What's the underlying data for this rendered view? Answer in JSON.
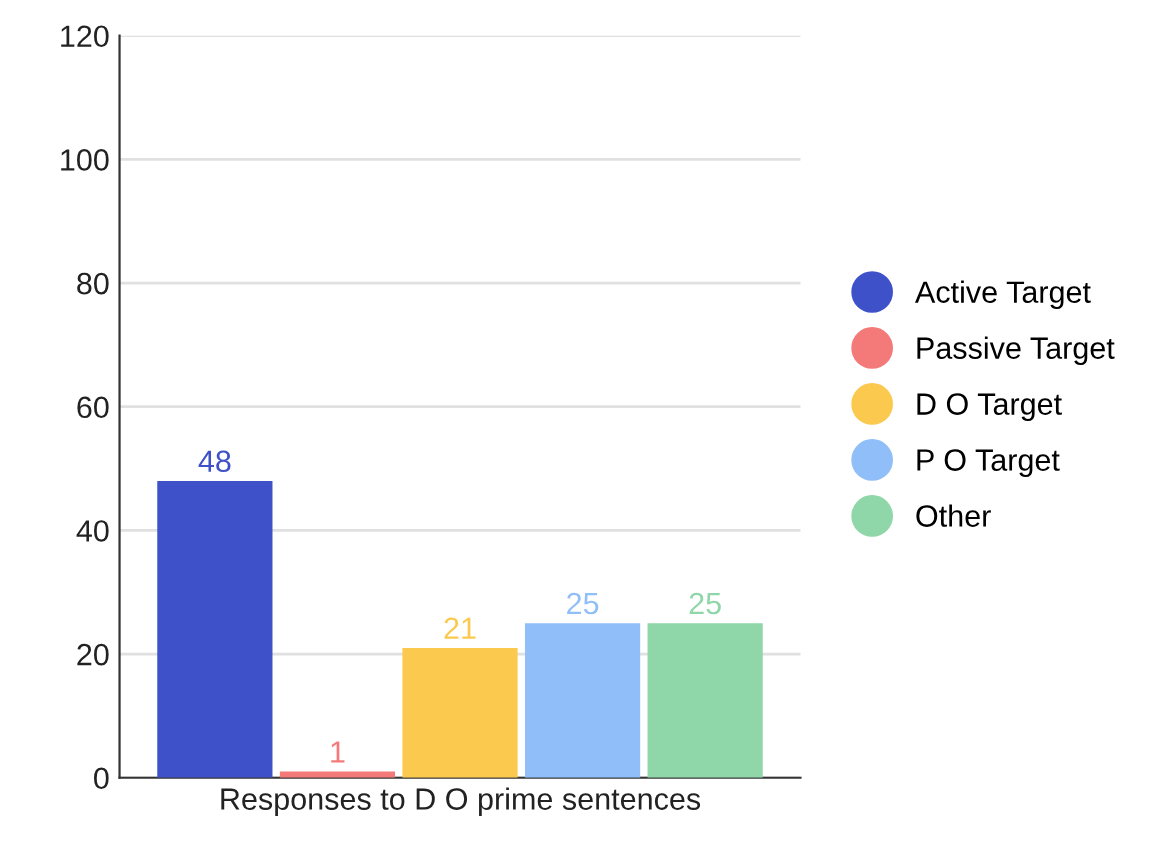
{
  "chart_data": {
    "type": "bar",
    "categories": [
      "Responses to D O prime sentences"
    ],
    "series": [
      {
        "name": "Active Target",
        "color": "#3f51c8",
        "values": [
          48
        ]
      },
      {
        "name": "Passive Target",
        "color": "#f47a7a",
        "values": [
          1
        ]
      },
      {
        "name": "D O Target",
        "color": "#fcc94f",
        "values": [
          21
        ]
      },
      {
        "name": "P O Target",
        "color": "#8fbef9",
        "values": [
          25
        ]
      },
      {
        "name": "Other",
        "color": "#8fd6a8",
        "values": [
          25
        ]
      }
    ],
    "ylim": [
      0,
      120
    ],
    "yticks": [
      0,
      20,
      40,
      60,
      80,
      100,
      120
    ],
    "grid": "y",
    "legend": "right",
    "data_labels": true
  }
}
